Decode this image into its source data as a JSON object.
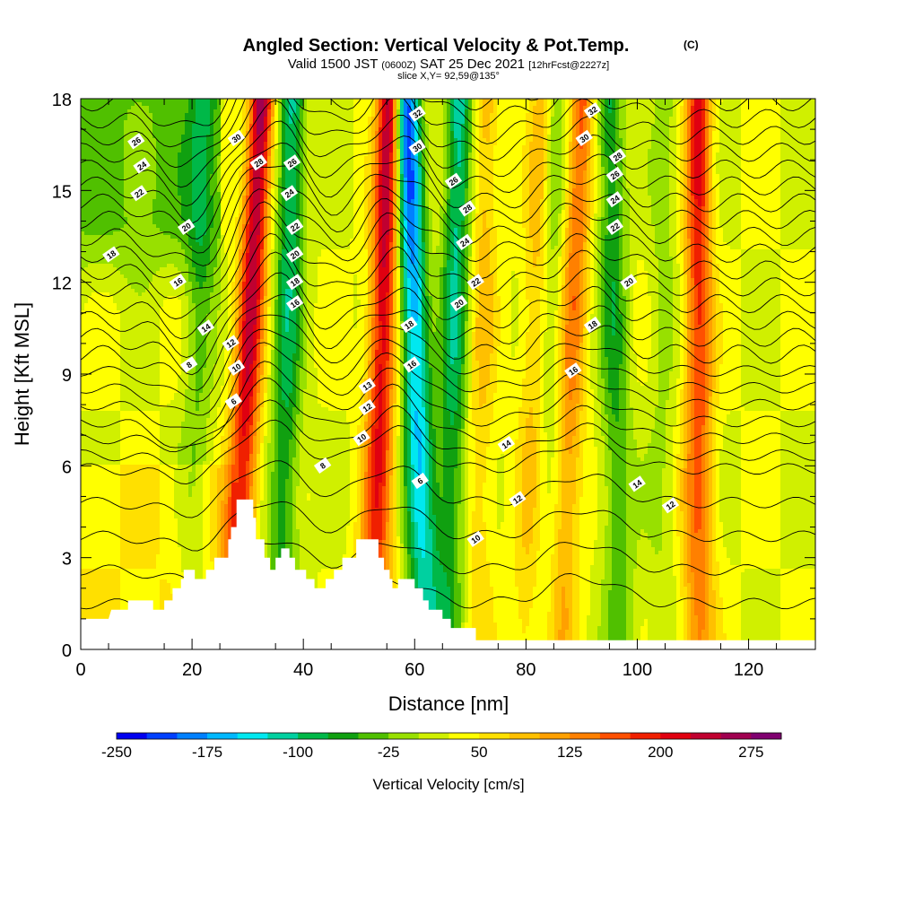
{
  "header": {
    "title": "Angled Section: Vertical Velocity & Pot.Temp.",
    "title_suffix": "(C)",
    "subtitle_valid": "Valid 1500 JST",
    "subtitle_utc": "(0600Z)",
    "subtitle_date": "SAT 25 Dec 2021",
    "subtitle_fcst": "[12hrFcst@2227z]",
    "slice": "slice X,Y= 92,59@135°"
  },
  "chart_data": {
    "type": "heatmap",
    "xlabel": "Distance [nm]",
    "ylabel": "Height [Kft MSL]",
    "xlim": [
      0,
      132
    ],
    "ylim": [
      0,
      18
    ],
    "x_ticks": [
      "0",
      "20",
      "40",
      "60",
      "80",
      "100",
      "120"
    ],
    "x_tick_values": [
      0,
      20,
      40,
      60,
      80,
      100,
      120
    ],
    "y_ticks": [
      "0",
      "3",
      "6",
      "9",
      "12",
      "15",
      "18"
    ],
    "y_tick_values": [
      0,
      3,
      6,
      9,
      12,
      15,
      18
    ],
    "colorbar": {
      "title": "Vertical Velocity [cm/s]",
      "min": -250,
      "max": 300,
      "step": 25,
      "labels": [
        "-250",
        "-175",
        "-100",
        "-25",
        "50",
        "125",
        "200",
        "275"
      ],
      "label_values": [
        -250,
        -175,
        -100,
        -25,
        50,
        125,
        200,
        275
      ],
      "colors": [
        "#0000f0",
        "#0040ff",
        "#0080ff",
        "#00b8ff",
        "#00e8f0",
        "#00d0a0",
        "#00b848",
        "#10a010",
        "#50c000",
        "#98e000",
        "#d0f000",
        "#ffff00",
        "#ffe000",
        "#ffc000",
        "#ffa000",
        "#ff8000",
        "#ff5000",
        "#f02000",
        "#e00010",
        "#c00030",
        "#a00050",
        "#800070"
      ]
    },
    "updrafts": [
      {
        "x_top": 32.5,
        "x_bottom": 27.5,
        "peak": 250
      },
      {
        "x_top": 55.5,
        "x_bottom": 52.5,
        "peak": 240
      },
      {
        "x_top": 90,
        "x_bottom": 86,
        "peak": 140
      },
      {
        "x_top": 111,
        "x_bottom": 111,
        "peak": 190
      },
      {
        "x_top": 83,
        "x_bottom": 80,
        "peak": 80
      },
      {
        "x_top": 73,
        "x_bottom": 71,
        "peak": 70
      }
    ],
    "downdrafts": [
      {
        "x_top": 58.5,
        "x_bottom": 62,
        "peak": -245
      },
      {
        "x_top": 38,
        "x_bottom": 36,
        "peak": -140
      },
      {
        "x_top": 68,
        "x_bottom": 66,
        "peak": -150
      },
      {
        "x_top": 95,
        "x_bottom": 97,
        "peak": -110
      },
      {
        "x_top": 22,
        "x_bottom": 20,
        "peak": -70
      },
      {
        "x_top": 85,
        "x_bottom": 84,
        "peak": -60
      },
      {
        "x_top": 105,
        "x_bottom": 104,
        "peak": -40
      }
    ],
    "terrain": [
      [
        0,
        1.0
      ],
      [
        5,
        1.0
      ],
      [
        5.5,
        1.3
      ],
      [
        8.5,
        1.3
      ],
      [
        8.5,
        1.6
      ],
      [
        13,
        1.6
      ],
      [
        13,
        1.3
      ],
      [
        15,
        1.3
      ],
      [
        15,
        1.6
      ],
      [
        16.5,
        1.6
      ],
      [
        16.5,
        2.0
      ],
      [
        18,
        2.0
      ],
      [
        18,
        2.3
      ],
      [
        18.5,
        2.3
      ],
      [
        18.5,
        2.6
      ],
      [
        20.5,
        2.6
      ],
      [
        20.5,
        2.3
      ],
      [
        22.5,
        2.3
      ],
      [
        22.5,
        2.6
      ],
      [
        24,
        2.6
      ],
      [
        24,
        3.0
      ],
      [
        26.5,
        3.0
      ],
      [
        26.5,
        3.6
      ],
      [
        27,
        3.6
      ],
      [
        27,
        4.0
      ],
      [
        28,
        4.0
      ],
      [
        28,
        4.9
      ],
      [
        31,
        4.9
      ],
      [
        31,
        4.3
      ],
      [
        31.5,
        4.3
      ],
      [
        31.5,
        3.6
      ],
      [
        33,
        3.6
      ],
      [
        33,
        3.0
      ],
      [
        34,
        3.0
      ],
      [
        34,
        2.6
      ],
      [
        35,
        2.6
      ],
      [
        35,
        3.0
      ],
      [
        36,
        3.0
      ],
      [
        36,
        3.3
      ],
      [
        37.5,
        3.3
      ],
      [
        37.5,
        3.0
      ],
      [
        38.5,
        3.0
      ],
      [
        38.5,
        2.6
      ],
      [
        40.5,
        2.6
      ],
      [
        40.5,
        2.3
      ],
      [
        42,
        2.3
      ],
      [
        42,
        2.0
      ],
      [
        44,
        2.0
      ],
      [
        44,
        2.3
      ],
      [
        45.5,
        2.3
      ],
      [
        45.5,
        2.6
      ],
      [
        47,
        2.6
      ],
      [
        47,
        3.0
      ],
      [
        49.5,
        3.0
      ],
      [
        49.5,
        3.6
      ],
      [
        53.5,
        3.6
      ],
      [
        53.5,
        3.0
      ],
      [
        54.5,
        3.0
      ],
      [
        54.5,
        2.6
      ],
      [
        55.5,
        2.6
      ],
      [
        55.5,
        2.3
      ],
      [
        56,
        2.3
      ],
      [
        56,
        2.0
      ],
      [
        57,
        2.0
      ],
      [
        57,
        2.3
      ],
      [
        60,
        2.3
      ],
      [
        60,
        2.0
      ],
      [
        61.5,
        2.0
      ],
      [
        61.5,
        1.6
      ],
      [
        62.5,
        1.6
      ],
      [
        62.5,
        1.3
      ],
      [
        65,
        1.3
      ],
      [
        65,
        1.0
      ],
      [
        66.5,
        1.0
      ],
      [
        66.5,
        0.7
      ],
      [
        71,
        0.7
      ],
      [
        71,
        0.3
      ],
      [
        132,
        0.3
      ]
    ],
    "contours": [
      {
        "level": 6,
        "labels": [
          [
            27.5,
            8.1
          ],
          [
            61,
            5.5
          ]
        ]
      },
      {
        "level": 8,
        "labels": [
          [
            19.5,
            9.3
          ],
          [
            43.5,
            6.0
          ]
        ]
      },
      {
        "level": 10,
        "labels": [
          [
            28,
            9.2
          ],
          [
            50.5,
            6.9
          ],
          [
            71,
            3.6
          ]
        ]
      },
      {
        "level": 12,
        "labels": [
          [
            27,
            10.0
          ],
          [
            51.5,
            7.9
          ],
          [
            78.5,
            4.9
          ],
          [
            106,
            4.7
          ]
        ]
      },
      {
        "level": 13,
        "labels": [
          [
            51.5,
            8.6
          ]
        ]
      },
      {
        "level": 14,
        "labels": [
          [
            22.5,
            10.5
          ],
          [
            76.5,
            6.7
          ],
          [
            100,
            5.4
          ]
        ]
      },
      {
        "level": 16,
        "labels": [
          [
            17.5,
            12.0
          ],
          [
            38.5,
            11.3
          ],
          [
            59.5,
            9.3
          ],
          [
            88.5,
            9.1
          ]
        ]
      },
      {
        "level": 18,
        "labels": [
          [
            5.5,
            12.9
          ],
          [
            38.5,
            12.0
          ],
          [
            59,
            10.6
          ],
          [
            92,
            10.6
          ]
        ]
      },
      {
        "level": 20,
        "labels": [
          [
            19,
            13.8
          ],
          [
            38.5,
            12.9
          ],
          [
            68,
            11.3
          ],
          [
            98.5,
            12.0
          ]
        ]
      },
      {
        "level": 22,
        "labels": [
          [
            10.5,
            14.9
          ],
          [
            38.5,
            13.8
          ],
          [
            71,
            12.0
          ],
          [
            96,
            13.8
          ]
        ]
      },
      {
        "level": 24,
        "labels": [
          [
            11,
            15.8
          ],
          [
            37.5,
            14.9
          ],
          [
            69,
            13.3
          ],
          [
            96,
            14.7
          ]
        ]
      },
      {
        "level": 26,
        "labels": [
          [
            10,
            16.6
          ],
          [
            38,
            15.9
          ],
          [
            67,
            15.3
          ],
          [
            96,
            15.5
          ]
        ]
      },
      {
        "level": 28,
        "labels": [
          [
            32,
            15.9
          ],
          [
            69.5,
            14.4
          ],
          [
            96.5,
            16.1
          ]
        ]
      },
      {
        "level": 30,
        "labels": [
          [
            28,
            16.7
          ],
          [
            60.5,
            16.4
          ],
          [
            90.5,
            16.7
          ]
        ]
      },
      {
        "level": 32,
        "labels": [
          [
            60.5,
            17.5
          ],
          [
            92,
            17.6
          ]
        ]
      }
    ]
  }
}
